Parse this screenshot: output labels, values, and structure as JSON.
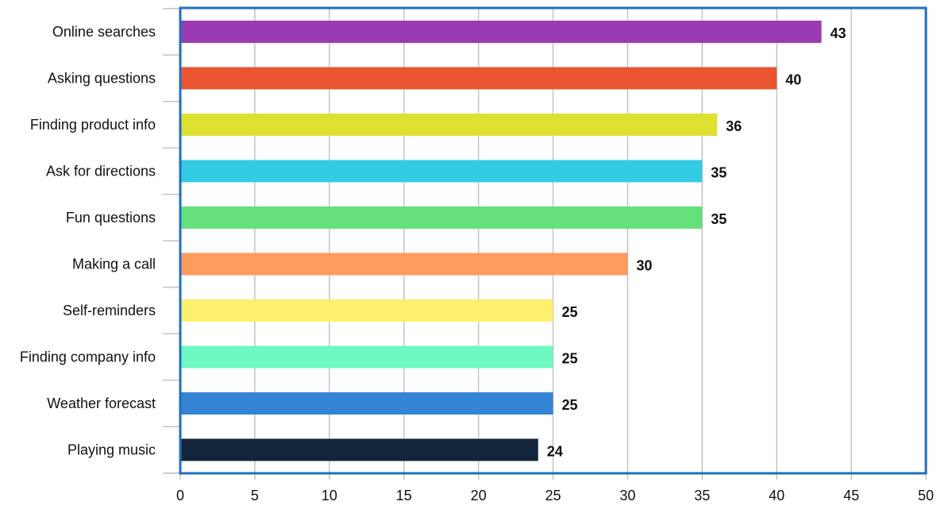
{
  "chart_data": {
    "type": "bar",
    "orientation": "horizontal",
    "categories": [
      "Online searches",
      "Asking questions",
      "Finding product info",
      "Ask for directions",
      "Fun questions",
      "Making a call",
      "Self-reminders",
      "Finding company info",
      "Weather forecast",
      "Playing music"
    ],
    "values": [
      43,
      40,
      36,
      35,
      35,
      30,
      25,
      25,
      25,
      24
    ],
    "value_labels": [
      "43",
      "40",
      "36",
      "35",
      "35",
      "30",
      "25",
      "25",
      "25",
      "24"
    ],
    "colors": [
      "#9b3bb3",
      "#ea5530",
      "#dfe130",
      "#33cbe3",
      "#66e07a",
      "#ff9a5e",
      "#fdf06e",
      "#70f8c3",
      "#3483d5",
      "#12253a"
    ],
    "xlim": [
      0,
      50
    ],
    "xticks": [
      0,
      5,
      10,
      15,
      20,
      25,
      30,
      35,
      40,
      45,
      50
    ],
    "xtick_labels": [
      "0",
      "5",
      "10",
      "15",
      "20",
      "25",
      "30",
      "35",
      "40",
      "45",
      "50"
    ],
    "grid": "vertical",
    "frame_color": "#1f6fbf",
    "grid_color": "#c4c4c4",
    "title": "",
    "xlabel": "",
    "ylabel": ""
  }
}
